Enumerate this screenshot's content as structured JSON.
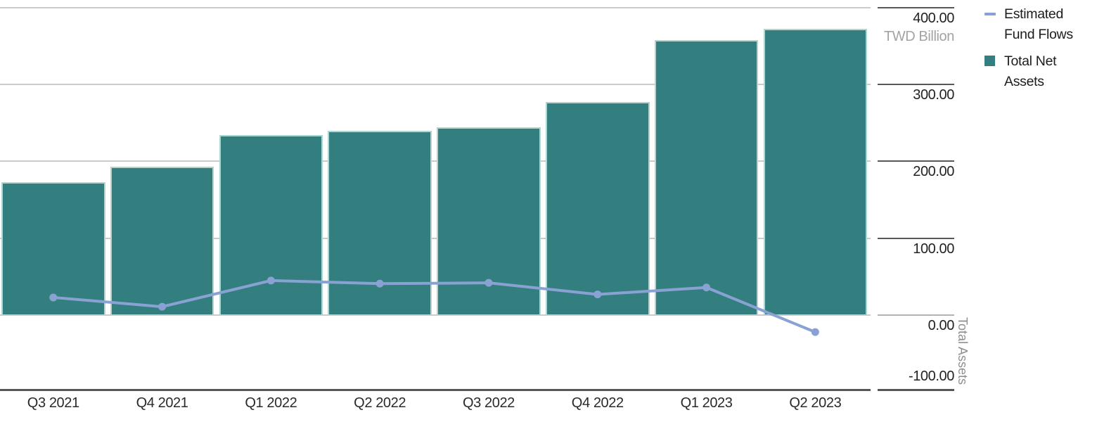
{
  "chart_data": {
    "type": "combo",
    "title": "",
    "categories": [
      "Q3 2021",
      "Q4 2021",
      "Q1 2022",
      "Q2 2022",
      "Q3 2022",
      "Q4 2022",
      "Q1 2023",
      "Q2 2023"
    ],
    "series": [
      {
        "name": "Total Net Assets",
        "chart_type": "bar",
        "color": "#337f80",
        "border_color": "#b2d4ce",
        "values": [
          172,
          192,
          233,
          239,
          243,
          276,
          357,
          371
        ]
      },
      {
        "name": "Estimated Fund Flows",
        "chart_type": "line",
        "color": "#8aa2d3",
        "values": [
          22,
          10,
          44,
          40,
          41,
          26,
          35,
          -23
        ]
      }
    ],
    "y_axis": {
      "side": "right",
      "unit_label": "TWD Billion",
      "axis_title": "Total Assets",
      "ylim": [
        -100,
        400
      ],
      "ticks": [
        {
          "value": 400,
          "label": "400.00"
        },
        {
          "value": 300,
          "label": "300.00"
        },
        {
          "value": 200,
          "label": "200.00"
        },
        {
          "value": 100,
          "label": "100.00"
        },
        {
          "value": 0,
          "label": "0.00"
        },
        {
          "value": -100,
          "label": "-100.00"
        }
      ]
    },
    "grid": true,
    "legend_position": "top-right",
    "legend": [
      {
        "label": "Estimated Fund Flows",
        "swatch": "line",
        "color": "#8aa2d3"
      },
      {
        "label": "Total Net Assets",
        "swatch": "square",
        "color": "#337f80"
      }
    ]
  }
}
